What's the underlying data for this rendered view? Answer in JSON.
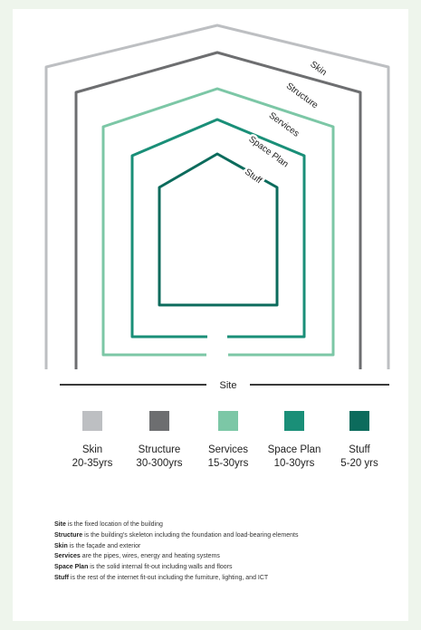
{
  "layers": [
    {
      "name": "Skin",
      "years": "20-35yrs",
      "color": "#bdbfc2",
      "label": "Skin"
    },
    {
      "name": "Structure",
      "years": "30-300yrs",
      "color": "#6d6e70",
      "label": "Structure"
    },
    {
      "name": "Services",
      "years": "15-30yrs",
      "color": "#7cc7a6",
      "label": "Services"
    },
    {
      "name": "Space Plan",
      "years": "10-30yrs",
      "color": "#1a8f78",
      "label": "Space Plan"
    },
    {
      "name": "Stuff",
      "years": "5-20 yrs",
      "color": "#0c6b5c",
      "label": "Stuff"
    }
  ],
  "site_label": "Site",
  "notes": [
    {
      "term": "Site",
      "text": " is the fixed location of the building"
    },
    {
      "term": "Structure",
      "text": " is the building's skeleton including the foundation and load-bearing elements"
    },
    {
      "term": "Skin",
      "text": " is the façade and exterior"
    },
    {
      "term": "Services",
      "text": " are the pipes, wires, energy and heating systems"
    },
    {
      "term": "Space Plan",
      "text": " is the solid internal fit-out including walls and floors"
    },
    {
      "term": "Stuff",
      "text": " is the rest of the internet fit-out including the furniture, lighting, and ICT"
    }
  ]
}
